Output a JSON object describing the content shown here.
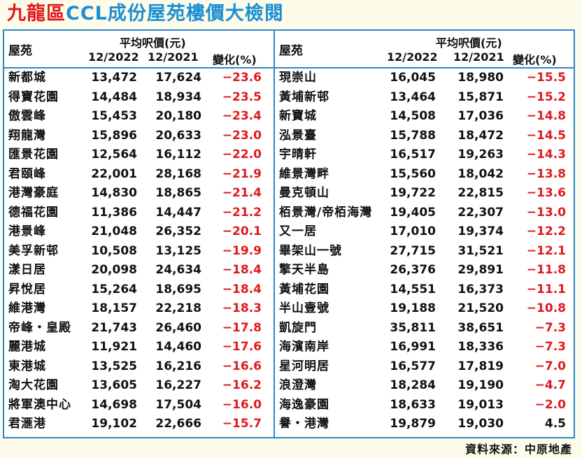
{
  "title": {
    "part1": "九龍區",
    "part2": "CCL成份屋苑樓價大檢閱"
  },
  "headers": {
    "estate": "屋苑",
    "avg_price": "平均呎價(元)",
    "col_2022": "12/2022",
    "col_2021": "12/2021",
    "col_change": "變化(%)"
  },
  "left_rows": [
    {
      "name": "新都城",
      "p2022": "13,472",
      "p2021": "17,624",
      "change": "−23.6"
    },
    {
      "name": "得寶花園",
      "p2022": "14,484",
      "p2021": "18,934",
      "change": "−23.5"
    },
    {
      "name": "傲雲峰",
      "p2022": "15,453",
      "p2021": "20,180",
      "change": "−23.4"
    },
    {
      "name": "翔龍灣",
      "p2022": "15,896",
      "p2021": "20,633",
      "change": "−23.0"
    },
    {
      "name": "匯景花園",
      "p2022": "12,564",
      "p2021": "16,112",
      "change": "−22.0"
    },
    {
      "name": "君頤峰",
      "p2022": "22,001",
      "p2021": "28,168",
      "change": "−21.9"
    },
    {
      "name": "港灣豪庭",
      "p2022": "14,830",
      "p2021": "18,865",
      "change": "−21.4"
    },
    {
      "name": "德福花園",
      "p2022": "11,386",
      "p2021": "14,447",
      "change": "−21.2"
    },
    {
      "name": "港景峰",
      "p2022": "21,048",
      "p2021": "26,352",
      "change": "−20.1"
    },
    {
      "name": "美孚新邨",
      "p2022": "10,508",
      "p2021": "13,125",
      "change": "−19.9"
    },
    {
      "name": "漾日居",
      "p2022": "20,098",
      "p2021": "24,634",
      "change": "−18.4"
    },
    {
      "name": "昇悅居",
      "p2022": "15,264",
      "p2021": "18,695",
      "change": "−18.4"
    },
    {
      "name": "維港灣",
      "p2022": "18,157",
      "p2021": "22,218",
      "change": "−18.3"
    },
    {
      "name": "帝峰・皇殿",
      "p2022": "21,743",
      "p2021": "26,460",
      "change": "−17.8"
    },
    {
      "name": "麗港城",
      "p2022": "11,921",
      "p2021": "14,460",
      "change": "−17.6"
    },
    {
      "name": "東港城",
      "p2022": "13,525",
      "p2021": "16,216",
      "change": "−16.6"
    },
    {
      "name": "淘大花園",
      "p2022": "13,605",
      "p2021": "16,227",
      "change": "−16.2"
    },
    {
      "name": "將軍澳中心",
      "p2022": "14,698",
      "p2021": "17,504",
      "change": "−16.0"
    },
    {
      "name": "君滙港",
      "p2022": "19,102",
      "p2021": "22,666",
      "change": "−15.7"
    }
  ],
  "right_rows": [
    {
      "name": "現崇山",
      "p2022": "16,045",
      "p2021": "18,980",
      "change": "−15.5"
    },
    {
      "name": "黃埔新邨",
      "p2022": "13,464",
      "p2021": "15,871",
      "change": "−15.2"
    },
    {
      "name": "新寶城",
      "p2022": "14,508",
      "p2021": "17,036",
      "change": "−14.8"
    },
    {
      "name": "泓景臺",
      "p2022": "15,788",
      "p2021": "18,472",
      "change": "−14.5"
    },
    {
      "name": "宇晴軒",
      "p2022": "16,517",
      "p2021": "19,263",
      "change": "−14.3"
    },
    {
      "name": "維景灣畔",
      "p2022": "15,560",
      "p2021": "18,042",
      "change": "−13.8"
    },
    {
      "name": "曼克頓山",
      "p2022": "19,722",
      "p2021": "22,815",
      "change": "−13.6"
    },
    {
      "name": "栢景灣/帝栢海灣",
      "p2022": "19,405",
      "p2021": "22,307",
      "change": "−13.0"
    },
    {
      "name": "又一居",
      "p2022": "17,010",
      "p2021": "19,374",
      "change": "−12.2"
    },
    {
      "name": "畢架山一號",
      "p2022": "27,715",
      "p2021": "31,521",
      "change": "−12.1"
    },
    {
      "name": "擎天半島",
      "p2022": "26,376",
      "p2021": "29,891",
      "change": "−11.8"
    },
    {
      "name": "黃埔花園",
      "p2022": "14,551",
      "p2021": "16,373",
      "change": "−11.1"
    },
    {
      "name": "半山壹號",
      "p2022": "19,188",
      "p2021": "21,520",
      "change": "−10.8"
    },
    {
      "name": "凱旋門",
      "p2022": "35,811",
      "p2021": "38,651",
      "change": "−7.3"
    },
    {
      "name": "海濱南岸",
      "p2022": "16,991",
      "p2021": "18,336",
      "change": "−7.3"
    },
    {
      "name": "星河明居",
      "p2022": "16,577",
      "p2021": "17,819",
      "change": "−7.0"
    },
    {
      "name": "浪澄灣",
      "p2022": "18,284",
      "p2021": "19,190",
      "change": "−4.7"
    },
    {
      "name": "海逸豪園",
      "p2022": "18,633",
      "p2021": "19,013",
      "change": "−2.0"
    },
    {
      "name": "譽・港灣",
      "p2022": "19,879",
      "p2021": "19,030",
      "change": "4.5"
    }
  ],
  "source": "資料來源：中原地產",
  "colors": {
    "accent_blue": "#2f86c9",
    "negative_red": "#e0191c",
    "title_red": "#e0191c",
    "title_blue": "#1c8fd4"
  }
}
